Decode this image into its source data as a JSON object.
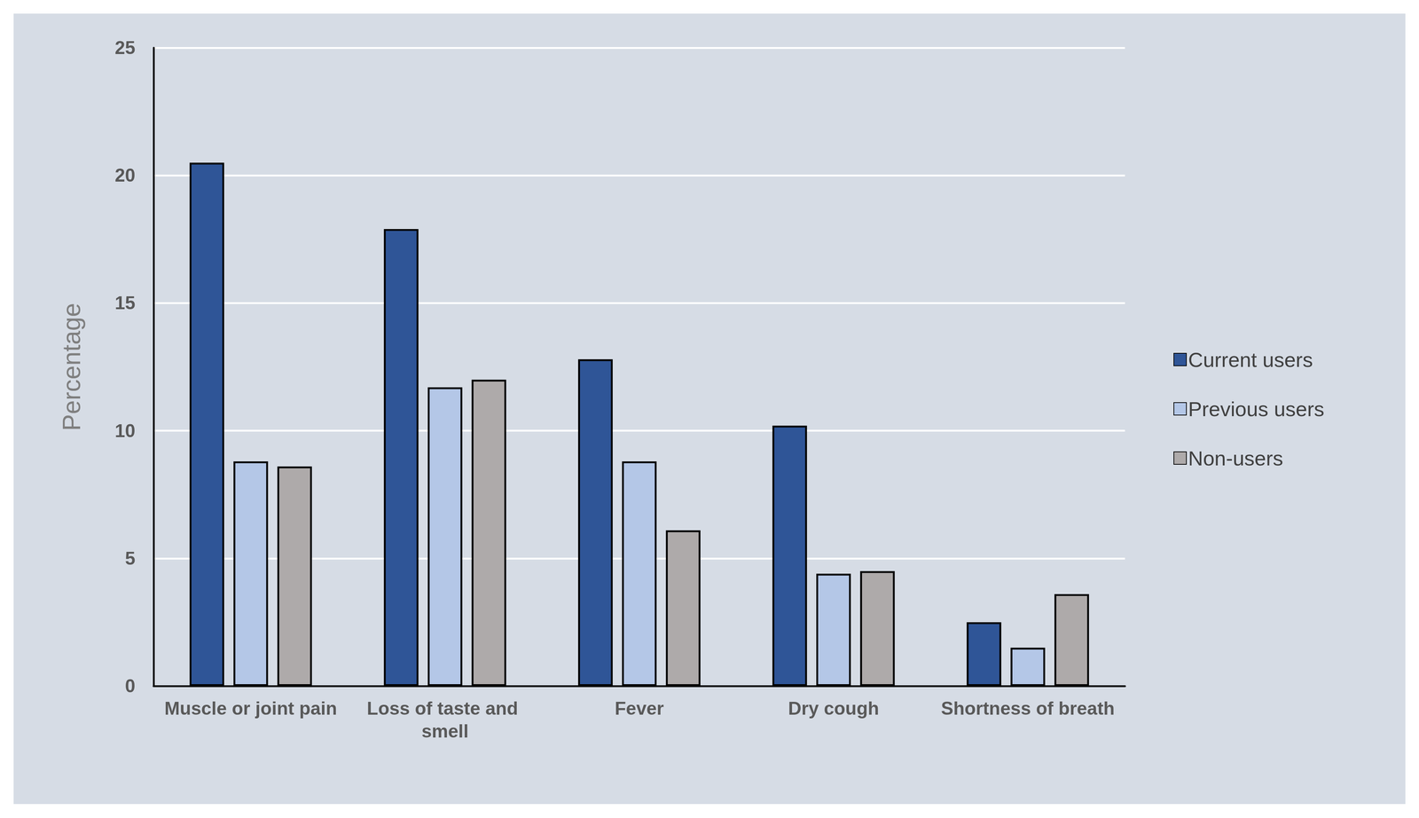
{
  "chart_data": {
    "type": "bar",
    "categories": [
      "Muscle or joint pain",
      "Loss of taste and smell",
      "Fever",
      "Dry cough",
      "Shortness of breath"
    ],
    "series": [
      {
        "name": "Current users",
        "color": "#2F5597",
        "values": [
          20.5,
          17.9,
          12.8,
          10.2,
          2.5
        ]
      },
      {
        "name": "Previous users",
        "color": "#B4C7E7",
        "values": [
          8.8,
          11.7,
          8.8,
          4.4,
          1.5
        ]
      },
      {
        "name": "Non-users",
        "color": "#AEAAAA",
        "values": [
          8.6,
          12.0,
          6.1,
          4.5,
          3.6
        ]
      }
    ],
    "y_label": "Percentage",
    "ylim": [
      0,
      25
    ],
    "yticks": [
      0,
      5,
      10,
      15,
      20,
      25
    ],
    "grid": true,
    "legend": "right"
  }
}
